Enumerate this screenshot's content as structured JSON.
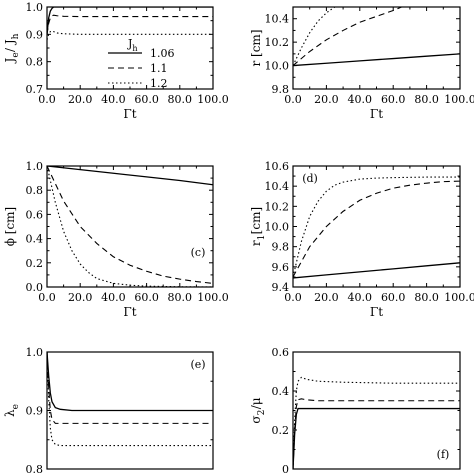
{
  "chart_data": [
    {
      "id": "a",
      "type": "line",
      "annotation": "",
      "xlabel": "Γt",
      "ylabel_main": "J",
      "ylabel_sub": "e",
      "ylabel_main2": " / J",
      "ylabel_sub2": "h",
      "xlim": [
        0,
        100
      ],
      "ylim": [
        0.7,
        1.0
      ],
      "x_ticks": [
        "0.0",
        "20.0",
        "40.0",
        "60.0",
        "80.0",
        "100.0"
      ],
      "x_tick_values": [
        0,
        20,
        40,
        60,
        80,
        100
      ],
      "y_ticks": [
        "0.7",
        "0.8",
        "0.9",
        "1.0"
      ],
      "y_tick_values": [
        0.7,
        0.8,
        0.9,
        1.0
      ],
      "legend": {
        "title_main": "J",
        "title_sub": "h",
        "placement": "center",
        "entries": [
          "1.06",
          "1.1",
          "1.2"
        ]
      },
      "series": [
        {
          "style": "solid",
          "x": [
            0,
            1,
            2,
            3,
            4,
            6,
            10,
            20,
            50,
            100
          ],
          "y": [
            0.9,
            0.96,
            0.985,
            0.995,
            1.0,
            1.0,
            1.0,
            1.0,
            1.0,
            1.0
          ]
        },
        {
          "style": "dashed",
          "x": [
            0,
            1,
            2,
            3,
            4,
            6,
            10,
            20,
            50,
            100
          ],
          "y": [
            0.9,
            0.94,
            0.96,
            0.968,
            0.97,
            0.968,
            0.966,
            0.965,
            0.965,
            0.965
          ]
        },
        {
          "style": "dotted",
          "x": [
            0,
            1,
            2,
            3,
            4,
            6,
            10,
            20,
            50,
            100
          ],
          "y": [
            0.88,
            0.9,
            0.91,
            0.912,
            0.91,
            0.905,
            0.902,
            0.9,
            0.9,
            0.9
          ]
        }
      ]
    },
    {
      "id": "b",
      "type": "line",
      "annotation": "",
      "xlabel": "Γt",
      "ylabel_main": "r [cm]",
      "ylabel_sub": "",
      "ylabel_main2": "",
      "ylabel_sub2": "",
      "xlim": [
        0,
        100
      ],
      "ylim": [
        9.8,
        10.5
      ],
      "x_ticks": [
        "0.0",
        "20.0",
        "40.0",
        "60.0",
        "80.0",
        "100.0"
      ],
      "x_tick_values": [
        0,
        20,
        40,
        60,
        80,
        100
      ],
      "y_ticks": [
        "9.8",
        "10.0",
        "10.2",
        "10.4"
      ],
      "y_tick_values": [
        9.8,
        10.0,
        10.2,
        10.4
      ],
      "series": [
        {
          "style": "solid",
          "x": [
            0,
            20,
            40,
            60,
            80,
            100
          ],
          "y": [
            10.0,
            10.02,
            10.04,
            10.06,
            10.08,
            10.1
          ]
        },
        {
          "style": "dashed",
          "x": [
            0,
            10,
            20,
            30,
            40,
            50,
            60,
            65
          ],
          "y": [
            10.0,
            10.12,
            10.22,
            10.3,
            10.37,
            10.42,
            10.47,
            10.5
          ]
        },
        {
          "style": "dotted",
          "x": [
            0,
            5,
            10,
            15,
            20,
            25
          ],
          "y": [
            10.0,
            10.15,
            10.28,
            10.38,
            10.45,
            10.5
          ]
        }
      ]
    },
    {
      "id": "c",
      "type": "line",
      "annotation": "(c)",
      "xlabel": "Γt",
      "ylabel_main": "ϕ [cm]",
      "ylabel_sub": "",
      "ylabel_main2": "",
      "ylabel_sub2": "",
      "xlim": [
        0,
        100
      ],
      "ylim": [
        0.0,
        1.0
      ],
      "x_ticks": [
        "0.0",
        "20.0",
        "40.0",
        "60.0",
        "80.0",
        "100.0"
      ],
      "x_tick_values": [
        0,
        20,
        40,
        60,
        80,
        100
      ],
      "y_ticks": [
        "0.0",
        "0.2",
        "0.4",
        "0.6",
        "0.8",
        "1.0"
      ],
      "y_tick_values": [
        0.0,
        0.2,
        0.4,
        0.6,
        0.8,
        1.0
      ],
      "series": [
        {
          "style": "solid",
          "x": [
            0,
            20,
            40,
            60,
            80,
            100
          ],
          "y": [
            1.0,
            0.97,
            0.94,
            0.91,
            0.88,
            0.845
          ]
        },
        {
          "style": "dashed",
          "x": [
            0,
            10,
            20,
            30,
            40,
            50,
            60,
            70,
            80,
            90,
            100
          ],
          "y": [
            1.0,
            0.71,
            0.5,
            0.36,
            0.25,
            0.18,
            0.13,
            0.09,
            0.065,
            0.045,
            0.03
          ]
        },
        {
          "style": "dotted",
          "x": [
            0,
            5,
            10,
            15,
            20,
            25,
            30,
            40,
            50,
            60,
            80,
            100
          ],
          "y": [
            1.0,
            0.7,
            0.46,
            0.3,
            0.19,
            0.12,
            0.07,
            0.03,
            0.015,
            0.007,
            0.002,
            0.0
          ]
        }
      ]
    },
    {
      "id": "d",
      "type": "line",
      "annotation": "(d)",
      "xlabel": "Γt",
      "ylabel_main": "r",
      "ylabel_sub": "1",
      "ylabel_main2": " [cm]",
      "ylabel_sub2": "",
      "xlim": [
        0,
        100
      ],
      "ylim": [
        9.4,
        10.6
      ],
      "x_ticks": [
        "0.0",
        "20.0",
        "40.0",
        "60.0",
        "80.0",
        "100.0"
      ],
      "x_tick_values": [
        0,
        20,
        40,
        60,
        80,
        100
      ],
      "y_ticks": [
        "9.4",
        "9.6",
        "9.8",
        "10.0",
        "10.2",
        "10.4",
        "10.6"
      ],
      "y_tick_values": [
        9.4,
        9.6,
        9.8,
        10.0,
        10.2,
        10.4,
        10.6
      ],
      "series": [
        {
          "style": "solid",
          "x": [
            0,
            20,
            40,
            60,
            80,
            100
          ],
          "y": [
            9.49,
            9.52,
            9.55,
            9.58,
            9.61,
            9.64
          ]
        },
        {
          "style": "dashed",
          "x": [
            0,
            10,
            20,
            30,
            40,
            50,
            60,
            70,
            80,
            90,
            100
          ],
          "y": [
            9.5,
            9.8,
            10.0,
            10.15,
            10.26,
            10.33,
            10.38,
            10.41,
            10.43,
            10.445,
            10.45
          ]
        },
        {
          "style": "dotted",
          "x": [
            0,
            5,
            10,
            15,
            20,
            25,
            30,
            40,
            50,
            60,
            80,
            100
          ],
          "y": [
            9.5,
            9.85,
            10.1,
            10.25,
            10.35,
            10.41,
            10.44,
            10.47,
            10.48,
            10.485,
            10.49,
            10.49
          ]
        }
      ]
    },
    {
      "id": "e",
      "type": "line",
      "annotation": "(e)",
      "xlabel": "",
      "ylabel_main": "λ",
      "ylabel_sub": "e",
      "ylabel_main2": "",
      "ylabel_sub2": "",
      "xlim": [
        0,
        100
      ],
      "ylim": [
        0.8,
        1.0
      ],
      "x_ticks": [],
      "x_tick_values": [],
      "y_ticks": [
        "0.8",
        "0.9",
        "1.0"
      ],
      "y_tick_values": [
        0.8,
        0.9,
        1.0
      ],
      "series": [
        {
          "style": "solid",
          "x": [
            0,
            1,
            2,
            3,
            5,
            8,
            15,
            30,
            60,
            100
          ],
          "y": [
            1.0,
            0.96,
            0.93,
            0.915,
            0.905,
            0.902,
            0.9,
            0.9,
            0.9,
            0.9
          ]
        },
        {
          "style": "dashed",
          "x": [
            0,
            1,
            2,
            3,
            5,
            8,
            15,
            30,
            60,
            100
          ],
          "y": [
            1.0,
            0.94,
            0.9,
            0.885,
            0.878,
            0.878,
            0.878,
            0.878,
            0.878,
            0.878
          ]
        },
        {
          "style": "dotted",
          "x": [
            0,
            1,
            2,
            3,
            5,
            8,
            15,
            30,
            60,
            100
          ],
          "y": [
            1.0,
            0.92,
            0.87,
            0.85,
            0.842,
            0.84,
            0.84,
            0.84,
            0.84,
            0.84
          ]
        }
      ]
    },
    {
      "id": "f",
      "type": "line",
      "annotation": "(f)",
      "xlabel": "",
      "ylabel_main": "σ",
      "ylabel_sub": "2",
      "ylabel_main2": "/μ",
      "ylabel_sub2": "",
      "xlim": [
        0,
        100
      ],
      "ylim": [
        0.0,
        0.6
      ],
      "x_ticks": [],
      "x_tick_values": [],
      "y_ticks": [
        "0",
        "0.2",
        "0.4",
        "0.6"
      ],
      "y_tick_values": [
        0.0,
        0.2,
        0.4,
        0.6
      ],
      "series": [
        {
          "style": "solid",
          "x": [
            0,
            1,
            2,
            3,
            5,
            8,
            15,
            30,
            60,
            100
          ],
          "y": [
            0.0,
            0.18,
            0.28,
            0.31,
            0.31,
            0.31,
            0.31,
            0.31,
            0.31,
            0.31
          ]
        },
        {
          "style": "dashed",
          "x": [
            0,
            1,
            2,
            3,
            5,
            8,
            15,
            30,
            60,
            100
          ],
          "y": [
            0.0,
            0.2,
            0.32,
            0.355,
            0.36,
            0.355,
            0.35,
            0.35,
            0.35,
            0.35
          ]
        },
        {
          "style": "dotted",
          "x": [
            0,
            1,
            2,
            3,
            5,
            8,
            15,
            30,
            60,
            100
          ],
          "y": [
            0.0,
            0.25,
            0.4,
            0.45,
            0.47,
            0.46,
            0.45,
            0.445,
            0.44,
            0.44
          ]
        }
      ]
    }
  ]
}
